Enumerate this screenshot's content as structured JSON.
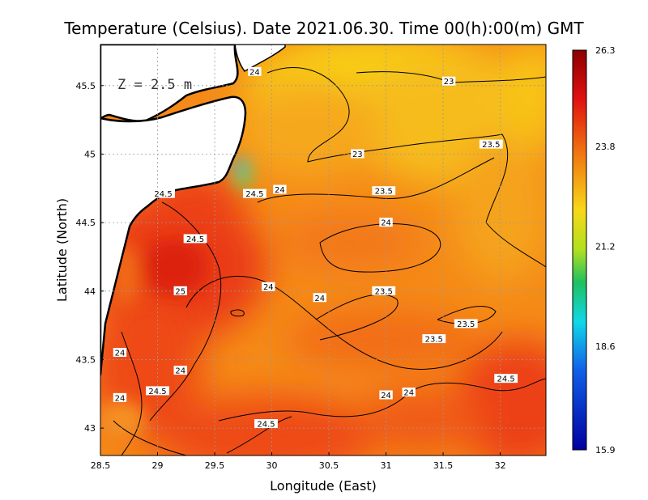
{
  "chart_data": {
    "type": "heatmap",
    "title": "Temperature (Celsius). Date 2021.06.30. Time 00(h):00(m) GMT",
    "xlabel": "Longitude (East)",
    "ylabel": "Latitude (North)",
    "annotation": "Z = 2.5 m",
    "xlim": [
      28.5,
      32.4
    ],
    "ylim": [
      42.8,
      45.8
    ],
    "x_ticks": [
      "28.5",
      "29",
      "29.5",
      "30",
      "30.5",
      "31",
      "31.5",
      "32"
    ],
    "x_tick_values": [
      28.5,
      29,
      29.5,
      30,
      30.5,
      31,
      31.5,
      32
    ],
    "y_ticks": [
      "43",
      "43.5",
      "44",
      "44.5",
      "45",
      "45.5"
    ],
    "y_tick_values": [
      43,
      43.5,
      44,
      44.5,
      45,
      45.5
    ],
    "grid": true,
    "colorbar": {
      "min": 15.9,
      "max": 26.3,
      "tick_labels": [
        "26.3",
        "23.8",
        "21.2",
        "18.6",
        "15.9"
      ],
      "tick_values": [
        26.3,
        23.8,
        21.2,
        18.6,
        15.9
      ]
    },
    "contour_labels": [
      {
        "text": "24",
        "lon": 29.85,
        "lat": 45.6
      },
      {
        "text": "23",
        "lon": 31.55,
        "lat": 45.53
      },
      {
        "text": "23.5",
        "lon": 31.92,
        "lat": 45.07
      },
      {
        "text": "23",
        "lon": 30.75,
        "lat": 45.0
      },
      {
        "text": "23.5",
        "lon": 30.98,
        "lat": 44.73
      },
      {
        "text": "24",
        "lon": 30.07,
        "lat": 44.74
      },
      {
        "text": "24.5",
        "lon": 29.85,
        "lat": 44.71
      },
      {
        "text": "24.5",
        "lon": 29.05,
        "lat": 44.71
      },
      {
        "text": "24",
        "lon": 31.0,
        "lat": 44.5
      },
      {
        "text": "24.5",
        "lon": 29.33,
        "lat": 44.38
      },
      {
        "text": "25",
        "lon": 29.2,
        "lat": 44.0
      },
      {
        "text": "24",
        "lon": 29.97,
        "lat": 44.03
      },
      {
        "text": "24",
        "lon": 30.42,
        "lat": 43.95
      },
      {
        "text": "23.5",
        "lon": 30.98,
        "lat": 44.0
      },
      {
        "text": "23.5",
        "lon": 31.7,
        "lat": 43.76
      },
      {
        "text": "23.5",
        "lon": 31.42,
        "lat": 43.65
      },
      {
        "text": "24",
        "lon": 28.67,
        "lat": 43.55
      },
      {
        "text": "24",
        "lon": 29.2,
        "lat": 43.42
      },
      {
        "text": "24.5",
        "lon": 32.05,
        "lat": 43.36
      },
      {
        "text": "24.5",
        "lon": 29.0,
        "lat": 43.27
      },
      {
        "text": "24",
        "lon": 31.2,
        "lat": 43.26
      },
      {
        "text": "24",
        "lon": 31.0,
        "lat": 43.24
      },
      {
        "text": "24",
        "lon": 28.67,
        "lat": 43.22
      },
      {
        "text": "24.5",
        "lon": 29.95,
        "lat": 43.03
      }
    ]
  }
}
